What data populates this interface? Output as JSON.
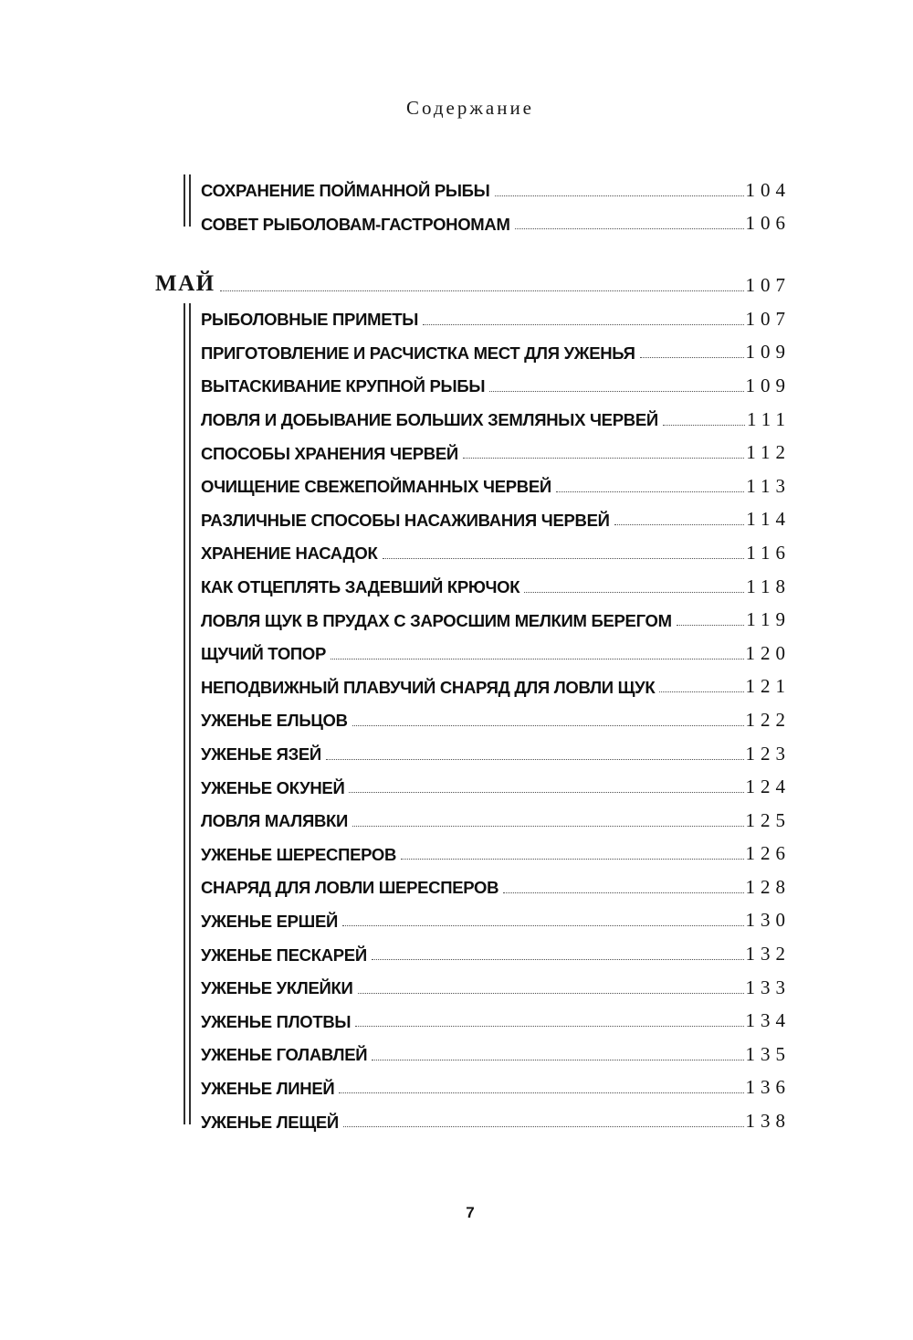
{
  "header": {
    "title": "Содержание"
  },
  "footer": {
    "page_number": "7"
  },
  "colors": {
    "text": "#0f0f0f",
    "rule": "#2e2e2e",
    "leader_dots": "#4f4f4f"
  },
  "toc": {
    "groups": [
      {
        "items": [
          {
            "title": "СОХРАНЕНИЕ ПОЙМАННОЙ РЫБЫ",
            "page": "104"
          },
          {
            "title": "СОВЕТ РЫБОЛОВАМ-ГАСТРОНОМАМ",
            "page": "106"
          }
        ]
      },
      {
        "section": {
          "title": "МАЙ",
          "page": "107"
        }
      },
      {
        "items": [
          {
            "title": "РЫБОЛОВНЫЕ ПРИМЕТЫ",
            "page": "107"
          },
          {
            "title": "ПРИГОТОВЛЕНИЕ И РАСЧИСТКА МЕСТ ДЛЯ УЖЕНЬЯ",
            "page": "109"
          },
          {
            "title": "ВЫТАСКИВАНИЕ КРУПНОЙ РЫБЫ",
            "page": "109"
          },
          {
            "title": "ЛОВЛЯ И ДОБЫВАНИЕ БОЛЬШИХ ЗЕМЛЯНЫХ ЧЕРВЕЙ",
            "page": "111"
          },
          {
            "title": "СПОСОБЫ ХРАНЕНИЯ ЧЕРВЕЙ",
            "page": "112"
          },
          {
            "title": "ОЧИЩЕНИЕ СВЕЖЕПОЙМАННЫХ ЧЕРВЕЙ",
            "page": "113"
          },
          {
            "title": "РАЗЛИЧНЫЕ СПОСОБЫ НАСАЖИВАНИЯ ЧЕРВЕЙ",
            "page": "114"
          },
          {
            "title": "ХРАНЕНИЕ НАСАДОК",
            "page": "116"
          },
          {
            "title": "КАК ОТЦЕПЛЯТЬ ЗАДЕВШИЙ КРЮЧОК",
            "page": "118"
          },
          {
            "title": "ЛОВЛЯ ЩУК В ПРУДАХ С ЗАРОСШИМ МЕЛКИМ БЕРЕГОМ",
            "page": "119"
          },
          {
            "title": "ЩУЧИЙ ТОПОР",
            "page": "120"
          },
          {
            "title": "НЕПОДВИЖНЫЙ ПЛАВУЧИЙ СНАРЯД ДЛЯ ЛОВЛИ ЩУК",
            "page": "121"
          },
          {
            "title": "УЖЕНЬЕ ЕЛЬЦОВ",
            "page": "122"
          },
          {
            "title": "УЖЕНЬЕ ЯЗЕЙ",
            "page": "123"
          },
          {
            "title": "УЖЕНЬЕ ОКУНЕЙ",
            "page": "124"
          },
          {
            "title": "ЛОВЛЯ МАЛЯВКИ",
            "page": "125"
          },
          {
            "title": "УЖЕНЬЕ ШЕРЕСПЕРОВ",
            "page": "126"
          },
          {
            "title": "СНАРЯД ДЛЯ ЛОВЛИ ШЕРЕСПЕРОВ",
            "page": "128"
          },
          {
            "title": "УЖЕНЬЕ ЕРШЕЙ",
            "page": "130"
          },
          {
            "title": "УЖЕНЬЕ ПЕСКАРЕЙ",
            "page": "132"
          },
          {
            "title": "УЖЕНЬЕ УКЛЕЙКИ",
            "page": "133"
          },
          {
            "title": "УЖЕНЬЕ ПЛОТВЫ",
            "page": "134"
          },
          {
            "title": "УЖЕНЬЕ ГОЛАВЛЕЙ",
            "page": "135"
          },
          {
            "title": "УЖЕНЬЕ ЛИНЕЙ",
            "page": "136"
          },
          {
            "title": "УЖЕНЬЕ ЛЕЩЕЙ",
            "page": "138"
          }
        ]
      }
    ]
  }
}
